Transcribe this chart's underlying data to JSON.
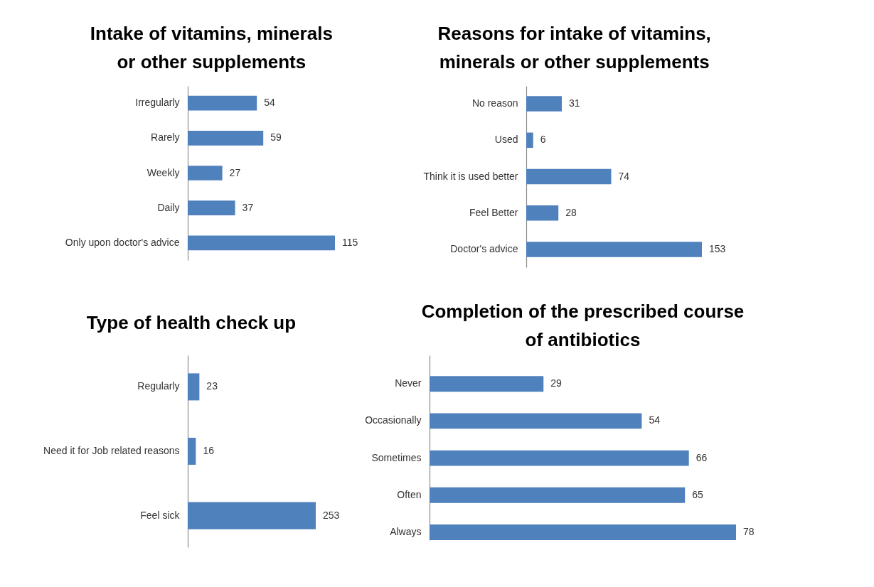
{
  "chart_data": [
    {
      "type": "bar",
      "orientation": "horizontal",
      "title": "Intake of vitamins, minerals or other supplements",
      "categories": [
        "Irregularly",
        "Rarely",
        "Weekly",
        "Daily",
        "Only upon doctor's advice"
      ],
      "values": [
        54,
        59,
        27,
        37,
        115
      ],
      "color": "#4f81bd",
      "data_labels": true
    },
    {
      "type": "bar",
      "orientation": "horizontal",
      "title": "Reasons for intake of vitamins, minerals or other supplements",
      "categories": [
        "No reason",
        "Used",
        "Think it is used better",
        "Feel Better",
        "Doctor's advice"
      ],
      "values": [
        31,
        6,
        74,
        28,
        153
      ],
      "color": "#4f81bd",
      "data_labels": true
    },
    {
      "type": "bar",
      "orientation": "horizontal",
      "title": "Type of health check up",
      "categories": [
        "Regularly",
        "Need it for Job related reasons",
        "Feel sick"
      ],
      "values": [
        23,
        16,
        253
      ],
      "color": "#4f81bd",
      "data_labels": true
    },
    {
      "type": "bar",
      "orientation": "horizontal",
      "title": "Completion of the prescribed course of antibiotics",
      "categories": [
        "Never",
        "Occasionally",
        "Sometimes",
        "Often",
        "Always"
      ],
      "values": [
        29,
        54,
        66,
        65,
        78
      ],
      "color": "#4f81bd",
      "data_labels": true
    }
  ]
}
